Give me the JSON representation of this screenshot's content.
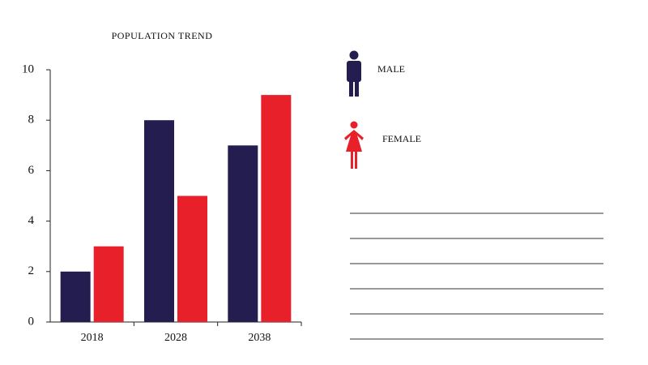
{
  "chart_data": {
    "type": "bar",
    "title": "POPULATION TREND",
    "categories": [
      "2018",
      "2028",
      "2038"
    ],
    "series": [
      {
        "name": "MALE",
        "color": "#241d4f",
        "values": [
          2,
          8,
          7
        ]
      },
      {
        "name": "FEMALE",
        "color": "#e8202a",
        "values": [
          3,
          5,
          9
        ]
      }
    ],
    "ylim": [
      0,
      10
    ],
    "yticks": [
      0,
      2,
      4,
      6,
      8,
      10
    ]
  }
}
